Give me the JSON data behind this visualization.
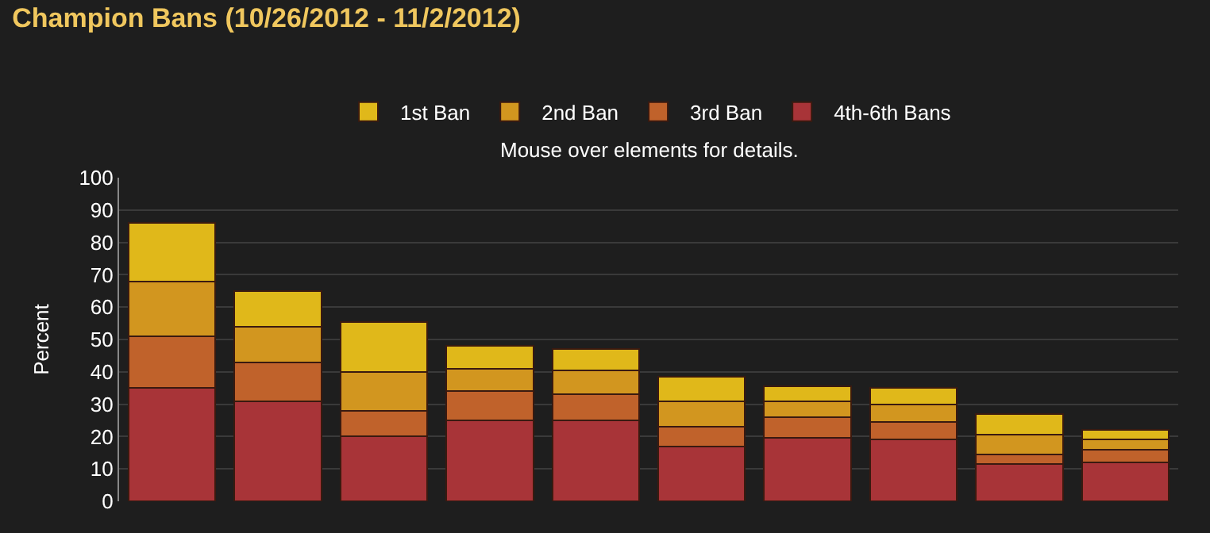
{
  "chart_data": {
    "type": "bar",
    "stacked": true,
    "title": "Champion Bans (10/26/2012 - 11/2/2012)",
    "subtitle": "Mouse over elements for details.",
    "ylabel": "Percent",
    "categories": [
      null,
      null,
      null,
      null,
      null,
      null,
      null,
      null,
      null,
      null
    ],
    "series": [
      {
        "name": "4th-6th Bans",
        "color": "#a83438",
        "values": [
          35,
          31,
          20,
          25,
          25,
          17,
          19.5,
          19,
          11.5,
          12
        ]
      },
      {
        "name": "3rd Ban",
        "color": "#c0622b",
        "values": [
          16,
          12,
          8,
          9,
          8,
          6,
          6.5,
          5.5,
          3,
          4
        ]
      },
      {
        "name": "2nd Ban",
        "color": "#d2961f",
        "values": [
          17,
          11,
          12,
          7,
          7.5,
          8,
          5,
          5.5,
          6,
          3
        ]
      },
      {
        "name": "1st Ban",
        "color": "#e0b81a",
        "values": [
          18,
          11,
          15.5,
          7,
          6.5,
          7.5,
          4.5,
          5,
          6.5,
          3
        ]
      }
    ],
    "ylim": [
      0,
      100
    ],
    "yticks": [
      0,
      10,
      20,
      30,
      40,
      50,
      60,
      70,
      80,
      90,
      100
    ],
    "grid": "y",
    "legend": "top"
  }
}
